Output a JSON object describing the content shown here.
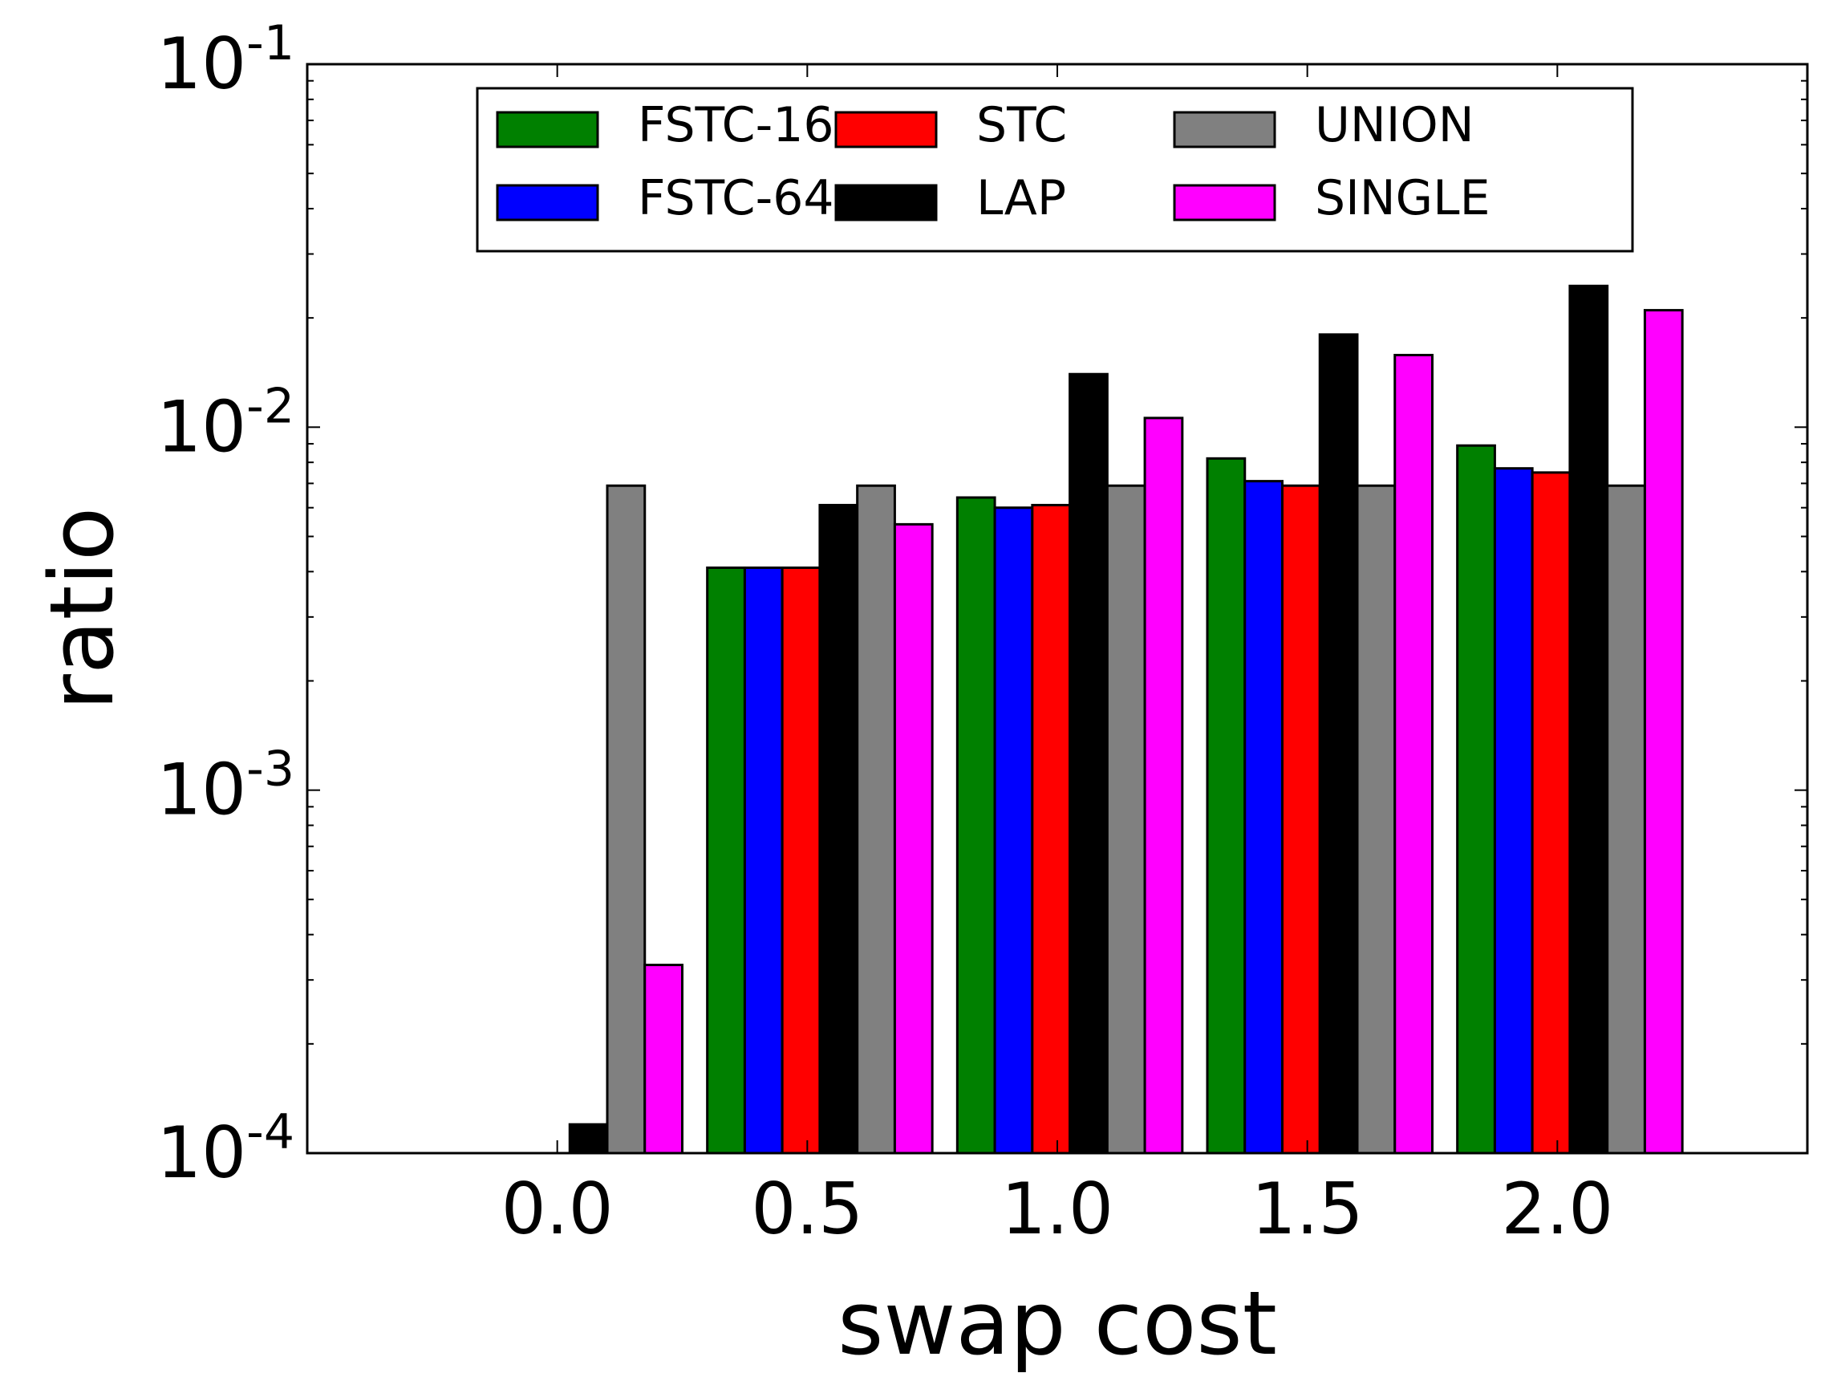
{
  "chart_data": {
    "type": "bar",
    "xlabel": "swap cost",
    "ylabel": "ratio",
    "yscale": "log",
    "ylim": [
      0.0001,
      0.1
    ],
    "xlim": [
      -0.5,
      2.5
    ],
    "grid": false,
    "legend_position": "top-center",
    "legend_columns": 3,
    "categories": [
      "0.0",
      "0.5",
      "1.0",
      "1.5",
      "2.0"
    ],
    "category_values": [
      0.0,
      0.5,
      1.0,
      1.5,
      2.0
    ],
    "y_ticks": [
      {
        "base": "10",
        "exp": "-4"
      },
      {
        "base": "10",
        "exp": "-3"
      },
      {
        "base": "10",
        "exp": "-2"
      },
      {
        "base": "10",
        "exp": "-1"
      }
    ],
    "series": [
      {
        "name": "FSTC-16",
        "color": "#008000",
        "values": [
          null,
          0.0041,
          0.0064,
          0.0082,
          0.0089
        ]
      },
      {
        "name": "FSTC-64",
        "color": "#0000ff",
        "values": [
          null,
          0.0041,
          0.006,
          0.0071,
          0.0077
        ]
      },
      {
        "name": "STC",
        "color": "#ff0000",
        "values": [
          null,
          0.0041,
          0.0061,
          0.0069,
          0.0075
        ]
      },
      {
        "name": "LAP",
        "color": "#000000",
        "values": [
          0.00012,
          0.0061,
          0.014,
          0.018,
          0.0245
        ]
      },
      {
        "name": "UNION",
        "color": "#808080",
        "values": [
          0.0069,
          0.0069,
          0.0069,
          0.0069,
          0.0069
        ]
      },
      {
        "name": "SINGLE",
        "color": "#ff00ff",
        "values": [
          0.00033,
          0.0054,
          0.0106,
          0.0158,
          0.021
        ]
      }
    ]
  }
}
